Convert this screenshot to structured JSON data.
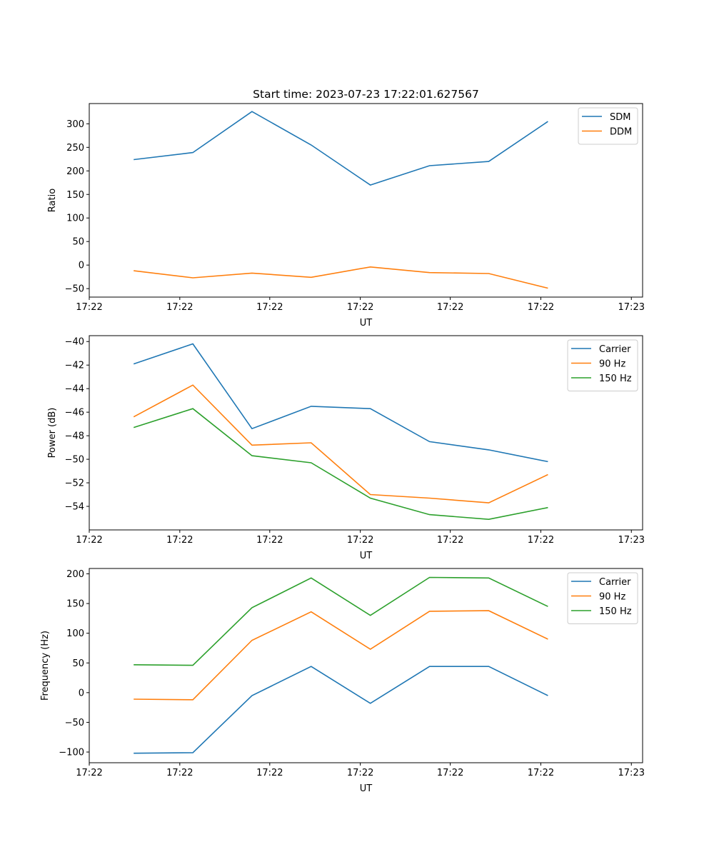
{
  "chart_data": [
    {
      "type": "line",
      "title": "Start time: 2023-07-23 17:22:01.627567",
      "xlabel": "UT",
      "ylabel": "Ratio",
      "x": [
        0,
        1,
        2,
        3,
        4,
        5,
        6,
        7
      ],
      "xlim": [
        -0.75,
        8.6
      ],
      "xticks": [
        -0.75,
        0.78,
        2.3,
        3.83,
        5.35,
        6.88,
        8.41
      ],
      "xtick_labels": [
        "17:22",
        "17:22",
        "17:22",
        "17:22",
        "17:22",
        "17:22",
        "17:23"
      ],
      "ylim": [
        -68,
        343
      ],
      "yticks": [
        -50,
        0,
        50,
        100,
        150,
        200,
        250,
        300
      ],
      "legend": "top-right",
      "grid": false,
      "series": [
        {
          "name": "SDM",
          "color": "#1f77b4",
          "values": [
            224,
            239,
            326,
            255,
            170,
            211,
            220,
            305
          ]
        },
        {
          "name": "DDM",
          "color": "#ff7f0e",
          "values": [
            -12,
            -27,
            -17,
            -26,
            -4,
            -16,
            -18,
            -49
          ]
        }
      ]
    },
    {
      "type": "line",
      "title": "",
      "xlabel": "UT",
      "ylabel": "Power (dB)",
      "x": [
        0,
        1,
        2,
        3,
        4,
        5,
        6,
        7
      ],
      "xlim": [
        -0.75,
        8.6
      ],
      "xticks": [
        -0.75,
        0.78,
        2.3,
        3.83,
        5.35,
        6.88,
        8.41
      ],
      "xtick_labels": [
        "17:22",
        "17:22",
        "17:22",
        "17:22",
        "17:22",
        "17:22",
        "17:23"
      ],
      "ylim": [
        -56.0,
        -39.5
      ],
      "yticks": [
        -54,
        -52,
        -50,
        -48,
        -46,
        -44,
        -42,
        -40
      ],
      "legend": "top-right",
      "grid": false,
      "series": [
        {
          "name": "Carrier",
          "color": "#1f77b4",
          "values": [
            -41.9,
            -40.2,
            -47.4,
            -45.5,
            -45.7,
            -48.5,
            -49.2,
            -50.2
          ]
        },
        {
          "name": "90 Hz",
          "color": "#ff7f0e",
          "values": [
            -46.4,
            -43.7,
            -48.8,
            -48.6,
            -53.0,
            -53.3,
            -53.7,
            -51.3
          ]
        },
        {
          "name": "150 Hz",
          "color": "#2ca02c",
          "values": [
            -47.3,
            -45.7,
            -49.7,
            -50.3,
            -53.3,
            -54.7,
            -55.1,
            -54.1
          ]
        }
      ]
    },
    {
      "type": "line",
      "title": "",
      "xlabel": "UT",
      "ylabel": "Frequency (Hz)",
      "x": [
        0,
        1,
        2,
        3,
        4,
        5,
        6,
        7
      ],
      "xlim": [
        -0.75,
        8.6
      ],
      "xticks": [
        -0.75,
        0.78,
        2.3,
        3.83,
        5.35,
        6.88,
        8.41
      ],
      "xtick_labels": [
        "17:22",
        "17:22",
        "17:22",
        "17:22",
        "17:22",
        "17:22",
        "17:23"
      ],
      "ylim": [
        -118,
        209
      ],
      "yticks": [
        -100,
        -50,
        0,
        50,
        100,
        150,
        200
      ],
      "legend": "top-right",
      "grid": false,
      "series": [
        {
          "name": "Carrier",
          "color": "#1f77b4",
          "values": [
            -102,
            -101,
            -5,
            44,
            -18,
            44,
            44,
            -5
          ]
        },
        {
          "name": "90 Hz",
          "color": "#ff7f0e",
          "values": [
            -11,
            -12,
            88,
            136,
            73,
            137,
            138,
            90
          ]
        },
        {
          "name": "150 Hz",
          "color": "#2ca02c",
          "values": [
            47,
            46,
            143,
            193,
            130,
            194,
            193,
            145
          ]
        }
      ]
    }
  ]
}
